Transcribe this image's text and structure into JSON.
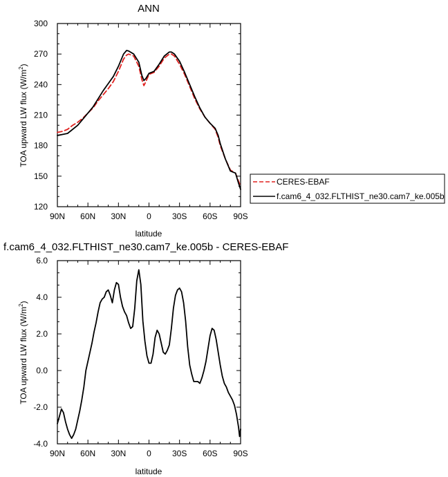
{
  "chart_data": [
    {
      "type": "line",
      "title": "ANN",
      "xlabel": "latitude",
      "ylabel": "TOA upward LW flux (W/m",
      "ylabel_sup": "2",
      "ylabel_end": ")",
      "xlim": [
        90,
        -90
      ],
      "ylim": [
        120,
        300
      ],
      "xticks": [
        {
          "value": 90,
          "label": "90N"
        },
        {
          "value": 60,
          "label": "60N"
        },
        {
          "value": 30,
          "label": "30N"
        },
        {
          "value": 0,
          "label": "0"
        },
        {
          "value": -30,
          "label": "30S"
        },
        {
          "value": -60,
          "label": "60S"
        },
        {
          "value": -90,
          "label": "90S"
        }
      ],
      "yticks": [
        {
          "value": 120,
          "label": "120"
        },
        {
          "value": 150,
          "label": "150"
        },
        {
          "value": 180,
          "label": "180"
        },
        {
          "value": 210,
          "label": "210"
        },
        {
          "value": 240,
          "label": "240"
        },
        {
          "value": 270,
          "label": "270"
        },
        {
          "value": 300,
          "label": "300"
        }
      ],
      "legend_position": "right",
      "series": [
        {
          "name": "CERES-EBAF",
          "color": "#e0211f",
          "dash": true,
          "x": [
            90,
            85,
            80,
            75,
            70,
            65,
            60,
            55,
            50,
            45,
            40,
            35,
            30,
            25,
            22,
            20,
            15,
            10,
            7,
            5,
            3,
            0,
            -5,
            -10,
            -15,
            -20,
            -22,
            -25,
            -30,
            -35,
            -40,
            -45,
            -50,
            -55,
            -60,
            -65,
            -68,
            -70,
            -75,
            -80,
            -85,
            -88,
            -90
          ],
          "y": [
            193,
            194,
            196,
            200,
            203,
            207,
            212,
            217,
            224,
            230,
            236,
            243,
            253,
            265,
            269,
            270,
            268,
            258,
            245,
            239,
            243,
            250,
            252,
            258,
            266,
            270,
            270,
            268,
            260,
            250,
            238,
            226,
            216,
            208,
            202,
            196,
            188,
            180,
            167,
            156,
            153,
            145,
            140
          ]
        },
        {
          "name": "f.cam6_4_032.FLTHIST_ne30.cam7_ke.005b",
          "color": "#000000",
          "dash": false,
          "x": [
            90,
            85,
            80,
            75,
            70,
            65,
            60,
            55,
            50,
            45,
            40,
            35,
            30,
            25,
            22,
            20,
            15,
            10,
            7,
            5,
            3,
            0,
            -5,
            -10,
            -15,
            -20,
            -22,
            -25,
            -30,
            -35,
            -40,
            -45,
            -50,
            -55,
            -60,
            -65,
            -68,
            -70,
            -75,
            -80,
            -85,
            -88,
            -90
          ],
          "y": [
            190,
            191,
            192,
            196,
            200,
            206,
            212,
            218,
            226,
            234,
            241,
            248,
            258,
            270,
            273.5,
            273,
            270,
            262,
            249,
            244,
            246,
            251,
            253,
            260,
            268,
            272,
            272,
            270,
            263,
            252,
            240,
            228,
            217,
            208,
            202,
            197,
            190,
            182,
            167,
            155,
            153,
            143,
            137
          ]
        }
      ]
    },
    {
      "type": "line",
      "title": "f.cam6_4_032.FLTHIST_ne30.cam7_ke.005b - CERES-EBAF",
      "xlabel": "latitude",
      "ylabel": "TOA upward LW flux (W/m",
      "ylabel_sup": "2",
      "ylabel_end": ")",
      "xlim": [
        90,
        -90
      ],
      "ylim": [
        -4.0,
        6.0
      ],
      "xticks": [
        {
          "value": 90,
          "label": "90N"
        },
        {
          "value": 60,
          "label": "60N"
        },
        {
          "value": 30,
          "label": "30N"
        },
        {
          "value": 0,
          "label": "0"
        },
        {
          "value": -30,
          "label": "30S"
        },
        {
          "value": -60,
          "label": "60S"
        },
        {
          "value": -90,
          "label": "90S"
        }
      ],
      "yticks": [
        {
          "value": -4.0,
          "label": "-4.0"
        },
        {
          "value": -2.0,
          "label": "-2.0"
        },
        {
          "value": 0.0,
          "label": "0.0"
        },
        {
          "value": 2.0,
          "label": "2.0"
        },
        {
          "value": 4.0,
          "label": "4.0"
        },
        {
          "value": 6.0,
          "label": "6.0"
        }
      ],
      "series": [
        {
          "name": "",
          "color": "#000000",
          "dash": false,
          "x": [
            90,
            88,
            86,
            84,
            82,
            80,
            78,
            76,
            74,
            72,
            70,
            68,
            66,
            64,
            62,
            60,
            58,
            56,
            54,
            52,
            50,
            48,
            46,
            44,
            42,
            40,
            38,
            36,
            34,
            32,
            30,
            28,
            26,
            24,
            22,
            20,
            18,
            16,
            14,
            12,
            10,
            8,
            6,
            4,
            2,
            0,
            -2,
            -4,
            -6,
            -8,
            -10,
            -12,
            -14,
            -16,
            -18,
            -20,
            -22,
            -24,
            -26,
            -28,
            -30,
            -32,
            -34,
            -36,
            -38,
            -40,
            -42,
            -44,
            -46,
            -48,
            -50,
            -52,
            -54,
            -56,
            -58,
            -60,
            -62,
            -64,
            -66,
            -68,
            -70,
            -72,
            -74,
            -76,
            -78,
            -80,
            -82,
            -84,
            -86,
            -88,
            -89,
            -90
          ],
          "y": [
            -2.9,
            -2.5,
            -2.1,
            -2.3,
            -2.8,
            -3.2,
            -3.5,
            -3.7,
            -3.5,
            -3.2,
            -2.7,
            -2.2,
            -1.6,
            -0.9,
            0.0,
            0.5,
            1.0,
            1.5,
            2.1,
            2.6,
            3.2,
            3.7,
            3.9,
            4.0,
            4.3,
            4.4,
            4.1,
            3.7,
            4.4,
            4.8,
            4.7,
            4.0,
            3.5,
            3.2,
            3.0,
            2.6,
            2.3,
            2.4,
            3.4,
            4.9,
            5.5,
            4.7,
            2.7,
            1.6,
            0.8,
            0.4,
            0.4,
            0.9,
            1.8,
            2.2,
            2.0,
            1.5,
            1.0,
            0.9,
            1.1,
            1.4,
            2.3,
            3.4,
            4.1,
            4.4,
            4.5,
            4.3,
            3.7,
            2.7,
            1.3,
            0.3,
            -0.2,
            -0.6,
            -0.6,
            -0.6,
            -0.7,
            -0.4,
            0.0,
            0.5,
            1.2,
            1.9,
            2.3,
            2.2,
            1.7,
            1.0,
            0.3,
            -0.3,
            -0.7,
            -0.9,
            -1.2,
            -1.4,
            -1.6,
            -1.9,
            -2.4,
            -3.1,
            -3.6,
            -3.2
          ]
        }
      ]
    }
  ]
}
